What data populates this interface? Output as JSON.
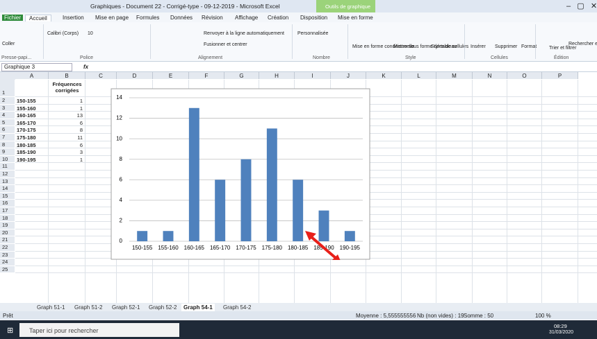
{
  "window": {
    "title": "Graphiques - Document 22 - Corrigé-type - 09-12-2019 - Microsoft Excel",
    "context_tab": "Outils de graphique"
  },
  "tabs": [
    "Fichier",
    "Accueil",
    "Insertion",
    "Mise en page",
    "Formules",
    "Données",
    "Révision",
    "Affichage",
    "Création",
    "Disposition",
    "Mise en forme"
  ],
  "ribbon": {
    "paste": "Coller",
    "font_name": "Calibri (Corps)",
    "font_size": "10",
    "wrap": "Renvoyer à la ligne automatiquement",
    "merge": "Fusionner et centrer",
    "number_format": "Personnalisée",
    "cond": "Mise en forme conditionnelle",
    "table": "Mettre sous forme de tableau",
    "styles": "Styles de cellules",
    "insert": "Insérer",
    "delete": "Supprimer",
    "format": "Format",
    "sort": "Trier et filtrer",
    "find": "Rechercher et sélectionner",
    "groups": [
      "Presse-papi...",
      "Police",
      "Alignement",
      "Nombre",
      "Style",
      "Cellules",
      "Édition"
    ]
  },
  "formula_bar": {
    "name_box": "Graphique 3",
    "fx": "fx"
  },
  "sheet": {
    "columns": [
      "A",
      "B",
      "C",
      "D",
      "E",
      "F",
      "G",
      "H",
      "I",
      "J",
      "K",
      "L",
      "M",
      "N",
      "O",
      "P"
    ],
    "row_numbers": [
      1,
      2,
      3,
      4,
      5,
      6,
      7,
      8,
      9,
      10,
      11,
      12,
      13,
      14,
      15,
      16,
      17,
      18,
      19,
      20,
      21,
      22,
      23,
      24,
      25
    ],
    "header": "Fréquences corrigées",
    "rows": [
      [
        "150-155",
        1
      ],
      [
        "155-160",
        1
      ],
      [
        "160-165",
        13
      ],
      [
        "165-170",
        6
      ],
      [
        "170-175",
        8
      ],
      [
        "175-180",
        11
      ],
      [
        "180-185",
        6
      ],
      [
        "185-190",
        3
      ],
      [
        "190-195",
        1
      ]
    ]
  },
  "chart_data": {
    "type": "bar",
    "categories": [
      "150-155",
      "155-160",
      "160-165",
      "165-170",
      "170-175",
      "175-180",
      "180-185",
      "185-190",
      "190-195"
    ],
    "values": [
      1,
      1,
      13,
      6,
      8,
      11,
      6,
      3,
      1
    ],
    "color": "#4f81bd",
    "ylim": [
      0,
      14
    ],
    "yticks": [
      0,
      2,
      4,
      6,
      8,
      10,
      12,
      14
    ],
    "grid": true
  },
  "sheet_tabs": [
    "Graph 51-1",
    "Graph 51-2",
    "Graph 52-1",
    "Graph 52-2",
    "Graph 54-1",
    "Graph 54-2"
  ],
  "active_tab": 4,
  "status": {
    "ready": "Prêt",
    "average": "Moyenne : 5,555555556",
    "count": "Nb (non vides) : 19",
    "sum": "Somme : 50",
    "zoom": "100 %"
  },
  "taskbar": {
    "search": "Taper ici pour rechercher",
    "time": "08:29",
    "date": "31/03/2020"
  }
}
